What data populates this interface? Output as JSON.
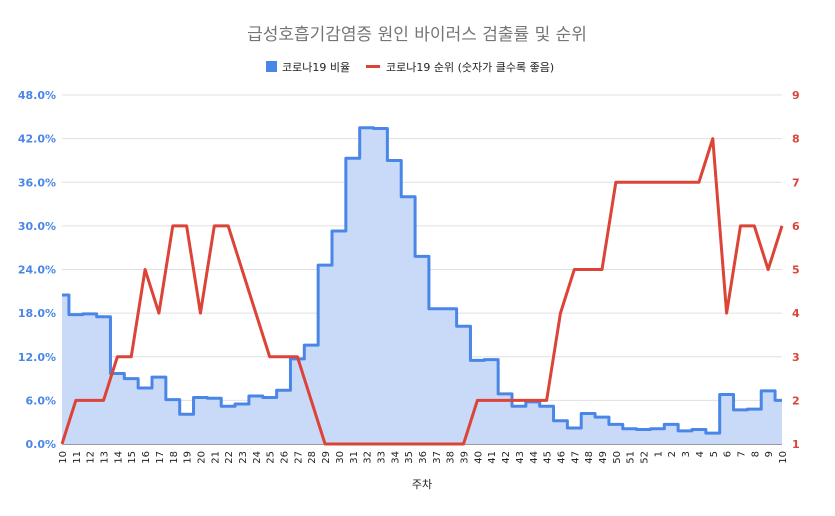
{
  "chart_data": {
    "type": "line",
    "title": "급성호흡기감염증 원인 바이러스 검출률 및 순위",
    "xlabel": "주차",
    "categories": [
      "10",
      "11",
      "12",
      "13",
      "14",
      "15",
      "16",
      "17",
      "18",
      "19",
      "20",
      "21",
      "22",
      "23",
      "24",
      "25",
      "26",
      "27",
      "28",
      "29",
      "30",
      "31",
      "32",
      "33",
      "34",
      "35",
      "36",
      "37",
      "38",
      "39",
      "40",
      "41",
      "42",
      "43",
      "44",
      "45",
      "46",
      "47",
      "48",
      "49",
      "50",
      "51",
      "52",
      "1",
      "2",
      "3",
      "4",
      "5",
      "6",
      "7",
      "8",
      "9",
      "10"
    ],
    "y_left": {
      "ticks": [
        "0.0%",
        "6.0%",
        "12.0%",
        "18.0%",
        "24.0%",
        "30.0%",
        "36.0%",
        "42.0%",
        "48.0%"
      ],
      "range": [
        0,
        48
      ],
      "unit": "%"
    },
    "y_right": {
      "ticks": [
        "1",
        "2",
        "3",
        "4",
        "5",
        "6",
        "7",
        "8",
        "9"
      ],
      "range": [
        1,
        9
      ]
    },
    "legend_position": "top",
    "grid": true,
    "series": [
      {
        "name": "코로나19 비율",
        "kind": "stepped-area",
        "axis": "left",
        "color": "#4a86e8",
        "fill": "#c9daf8",
        "values": [
          20.5,
          17.8,
          17.9,
          17.5,
          9.7,
          9.0,
          7.7,
          9.2,
          6.1,
          4.1,
          6.4,
          6.3,
          5.2,
          5.5,
          6.6,
          6.4,
          7.4,
          11.7,
          13.6,
          24.6,
          29.3,
          39.3,
          43.5,
          43.4,
          39.0,
          34.0,
          25.8,
          18.6,
          18.6,
          16.2,
          11.5,
          11.6,
          6.9,
          5.2,
          5.8,
          5.2,
          3.2,
          2.2,
          4.2,
          3.7,
          2.7,
          2.1,
          2.0,
          2.1,
          2.7,
          1.8,
          2.0,
          1.5,
          6.8,
          4.7,
          4.8,
          7.3,
          6.0
        ]
      },
      {
        "name": "코로나19 순위 (숫자가 클수록 좋음)",
        "kind": "line",
        "axis": "right",
        "color": "#db4437",
        "values": [
          1,
          2,
          2,
          2,
          3,
          3,
          5,
          4,
          6,
          6,
          4,
          6,
          6,
          5,
          4,
          3,
          3,
          3,
          2,
          1,
          1,
          1,
          1,
          1,
          1,
          1,
          1,
          1,
          1,
          1,
          2,
          2,
          2,
          2,
          2,
          2,
          4,
          5,
          5,
          5,
          7,
          7,
          7,
          7,
          7,
          7,
          7,
          8,
          4,
          6,
          6,
          5,
          6
        ]
      }
    ]
  }
}
